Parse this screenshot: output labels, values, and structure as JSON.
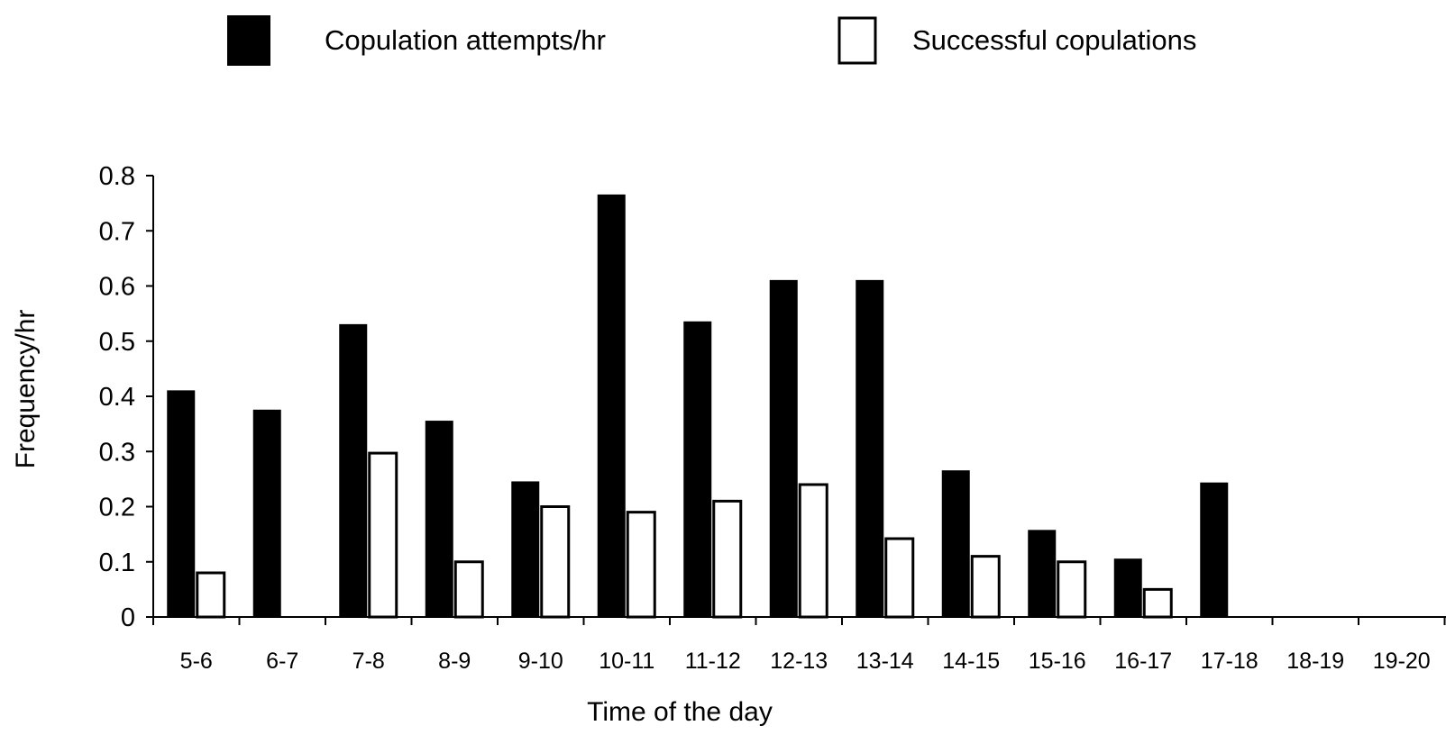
{
  "chart_data": {
    "type": "bar",
    "xlabel": "Time of the day",
    "ylabel": "Frequency/hr",
    "ylim": [
      0,
      0.8
    ],
    "yticks": [
      "0",
      "0.1",
      "0.2",
      "0.3",
      "0.4",
      "0.5",
      "0.6",
      "0.7",
      "0.8"
    ],
    "categories": [
      "5-6",
      "6-7",
      "7-8",
      "8-9",
      "9-10",
      "10-11",
      "11-12",
      "12-13",
      "13-14",
      "14-15",
      "15-16",
      "16-17",
      "17-18",
      "18-19",
      "19-20"
    ],
    "series": [
      {
        "name": "Copulation attempts/hr",
        "fill": "#000000",
        "values": [
          0.41,
          0.375,
          0.53,
          0.355,
          0.245,
          0.765,
          0.535,
          0.61,
          0.61,
          0.265,
          0.157,
          0.105,
          0.243,
          0,
          0
        ]
      },
      {
        "name": "Successful copulations",
        "fill": "#ffffff",
        "values": [
          0.08,
          0,
          0.297,
          0.1,
          0.2,
          0.19,
          0.21,
          0.24,
          0.142,
          0.11,
          0.1,
          0.05,
          0,
          0,
          0
        ]
      }
    ],
    "grid": false,
    "legend_position": "top"
  }
}
